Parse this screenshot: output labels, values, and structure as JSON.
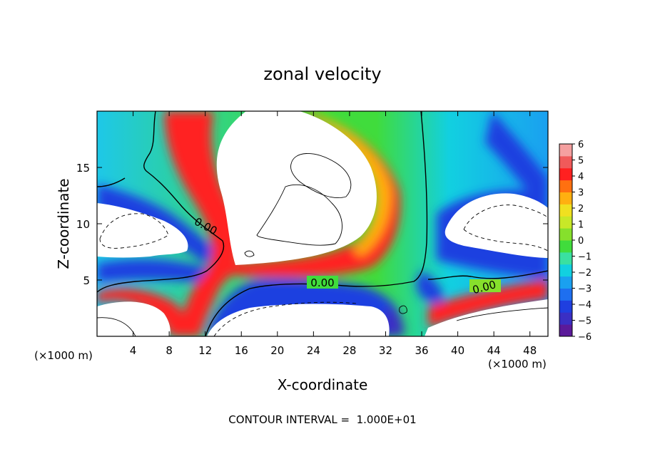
{
  "chart_data": {
    "type": "heatmap",
    "title": "zonal velocity",
    "xlabel": "X-coordinate",
    "ylabel": "Z-coordinate",
    "x_unit": "(×1000 m)",
    "y_unit": "(×1000 m)",
    "xlim": [
      0,
      50
    ],
    "ylim": [
      0,
      20
    ],
    "x_ticks": [
      4,
      8,
      12,
      16,
      20,
      24,
      28,
      32,
      36,
      40,
      44,
      48
    ],
    "y_ticks": [
      5,
      10,
      15
    ],
    "colorbar": {
      "min": -6,
      "max": 6,
      "ticks": [
        6,
        5,
        4,
        3,
        2,
        1,
        0,
        -1,
        -2,
        -3,
        -4,
        -5,
        -6
      ],
      "colors": [
        "#5b1a9a",
        "#3a2fc4",
        "#1f3fe0",
        "#1e6ff0",
        "#1aa0f0",
        "#12d0e0",
        "#3ae0a0",
        "#40dc3c",
        "#86e02c",
        "#c8e828",
        "#f0e020",
        "#ffb010",
        "#ff7010",
        "#ff2020",
        "#f05a5a",
        "#f5a0a0"
      ],
      "saturated_color": "#ffffff"
    },
    "contour_labels": [
      {
        "text": "0.00",
        "x": 11.9,
        "z": 9.4,
        "angle": -28
      },
      {
        "text": "0.00",
        "x": 24.0,
        "z": 4.75,
        "angle": 0
      },
      {
        "text": "0.00",
        "x": 43.5,
        "z": 4.25,
        "angle": -15
      }
    ],
    "contour_interval_text": "CONTOUR INTERVAL =  1.000E+01"
  }
}
